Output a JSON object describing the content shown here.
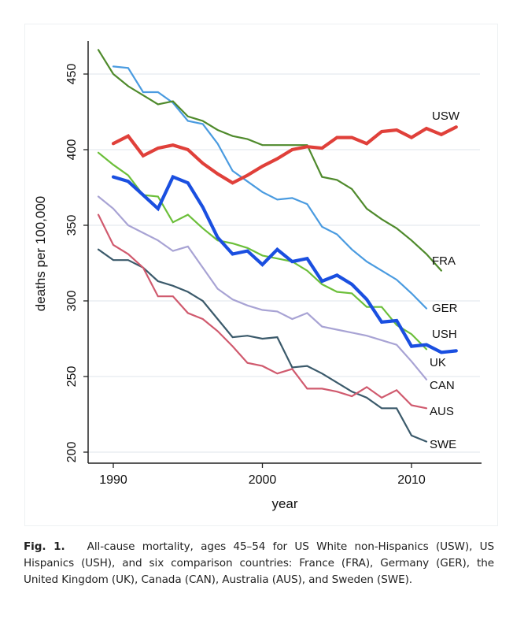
{
  "chart_data": {
    "type": "line",
    "title": "",
    "xlabel": "year",
    "ylabel": "deaths per 100,000",
    "xlim": [
      1989,
      2013
    ],
    "ylim": [
      200,
      470
    ],
    "xticks": [
      1990,
      2000,
      2010
    ],
    "yticks": [
      200,
      250,
      300,
      350,
      400,
      450
    ],
    "grid": "horizontal",
    "legend": "direct-labels-right",
    "series": [
      {
        "name": "USW",
        "color": "#e0403a",
        "width": "thick",
        "x": [
          1990,
          1991,
          1992,
          1993,
          1994,
          1995,
          1996,
          1997,
          1998,
          1999,
          2000,
          2001,
          2002,
          2003,
          2004,
          2005,
          2006,
          2007,
          2008,
          2009,
          2010,
          2011,
          2012,
          2013
        ],
        "y": [
          404,
          409,
          396,
          401,
          403,
          400,
          391,
          384,
          378,
          383,
          389,
          394,
          400,
          402,
          401,
          408,
          408,
          404,
          412,
          413,
          408,
          414,
          410,
          415
        ]
      },
      {
        "name": "FRA",
        "color": "#4f8a2c",
        "width": "normal",
        "x": [
          1989,
          1990,
          1991,
          1992,
          1993,
          1994,
          1995,
          1996,
          1997,
          1998,
          1999,
          2000,
          2001,
          2002,
          2003,
          2004,
          2005,
          2006,
          2007,
          2008,
          2009,
          2010,
          2011,
          2012
        ],
        "y": [
          466,
          450,
          442,
          436,
          430,
          432,
          422,
          419,
          413,
          409,
          407,
          403,
          403,
          403,
          403,
          382,
          380,
          374,
          361,
          354,
          348,
          340,
          331,
          320
        ]
      },
      {
        "name": "GER",
        "color": "#4a9be0",
        "width": "normal",
        "x": [
          1990,
          1991,
          1992,
          1993,
          1994,
          1995,
          1996,
          1997,
          1998,
          1999,
          2000,
          2001,
          2002,
          2003,
          2004,
          2005,
          2006,
          2007,
          2008,
          2009,
          2010,
          2011
        ],
        "y": [
          455,
          454,
          438,
          438,
          431,
          419,
          417,
          404,
          386,
          379,
          372,
          367,
          368,
          364,
          349,
          344,
          334,
          326,
          320,
          314,
          305,
          295
        ]
      },
      {
        "name": "USH",
        "color": "#1a4fe0",
        "width": "thick",
        "x": [
          1990,
          1991,
          1992,
          1993,
          1994,
          1995,
          1996,
          1997,
          1998,
          1999,
          2000,
          2001,
          2002,
          2003,
          2004,
          2005,
          2006,
          2007,
          2008,
          2009,
          2010,
          2011,
          2012,
          2013
        ],
        "y": [
          382,
          379,
          370,
          361,
          382,
          378,
          362,
          342,
          331,
          333,
          324,
          334,
          326,
          328,
          313,
          317,
          311,
          301,
          286,
          287,
          270,
          271,
          266,
          267
        ]
      },
      {
        "name": "UK",
        "color": "#6cbf3a",
        "width": "normal",
        "x": [
          1989,
          1990,
          1991,
          1992,
          1993,
          1994,
          1995,
          1996,
          1997,
          1998,
          1999,
          2000,
          2001,
          2002,
          2003,
          2004,
          2005,
          2006,
          2007,
          2008,
          2009,
          2010,
          2011
        ],
        "y": [
          398,
          390,
          383,
          370,
          369,
          352,
          357,
          348,
          340,
          338,
          335,
          330,
          328,
          326,
          320,
          311,
          306,
          305,
          296,
          296,
          284,
          278,
          268
        ]
      },
      {
        "name": "CAN",
        "color": "#a8a3d4",
        "width": "normal",
        "x": [
          1989,
          1990,
          1991,
          1992,
          1993,
          1994,
          1995,
          1996,
          1997,
          1998,
          1999,
          2000,
          2001,
          2002,
          2003,
          2004,
          2005,
          2006,
          2007,
          2008,
          2009,
          2010,
          2011
        ],
        "y": [
          369,
          361,
          350,
          345,
          340,
          333,
          336,
          322,
          308,
          301,
          297,
          294,
          293,
          288,
          292,
          283,
          281,
          279,
          277,
          274,
          271,
          260,
          248
        ]
      },
      {
        "name": "AUS",
        "color": "#d05a6e",
        "width": "normal",
        "x": [
          1989,
          1990,
          1991,
          1992,
          1993,
          1994,
          1995,
          1996,
          1997,
          1998,
          1999,
          2000,
          2001,
          2002,
          2003,
          2004,
          2005,
          2006,
          2007,
          2008,
          2009,
          2010,
          2011
        ],
        "y": [
          357,
          337,
          331,
          322,
          303,
          303,
          292,
          288,
          280,
          270,
          259,
          257,
          252,
          255,
          242,
          242,
          240,
          237,
          243,
          236,
          241,
          231,
          229
        ]
      },
      {
        "name": "SWE",
        "color": "#3b5a6b",
        "width": "normal",
        "x": [
          1989,
          1990,
          1991,
          1992,
          1993,
          1994,
          1995,
          1996,
          1997,
          1998,
          1999,
          2000,
          2001,
          2002,
          2003,
          2004,
          2005,
          2006,
          2007,
          2008,
          2009,
          2010,
          2011
        ],
        "y": [
          334,
          327,
          327,
          322,
          313,
          310,
          306,
          300,
          288,
          276,
          277,
          275,
          276,
          256,
          257,
          252,
          246,
          240,
          236,
          229,
          229,
          211,
          207
        ]
      }
    ],
    "labels": [
      {
        "series": "USW",
        "text": "USW"
      },
      {
        "series": "FRA",
        "text": "FRA"
      },
      {
        "series": "GER",
        "text": "GER"
      },
      {
        "series": "USH",
        "text": "USH"
      },
      {
        "series": "UK",
        "text": "UK"
      },
      {
        "series": "CAN",
        "text": "CAN"
      },
      {
        "series": "AUS",
        "text": "AUS"
      },
      {
        "series": "SWE",
        "text": "SWE"
      }
    ]
  },
  "caption": {
    "fig_label": "Fig. 1.",
    "text": "All-cause mortality, ages 45–54 for US White non-Hispanics (USW), US Hispanics (USH), and six comparison countries: France (FRA), Germany (GER), the United Kingdom (UK), Canada (CAN), Australia (AUS), and Sweden (SWE)."
  }
}
